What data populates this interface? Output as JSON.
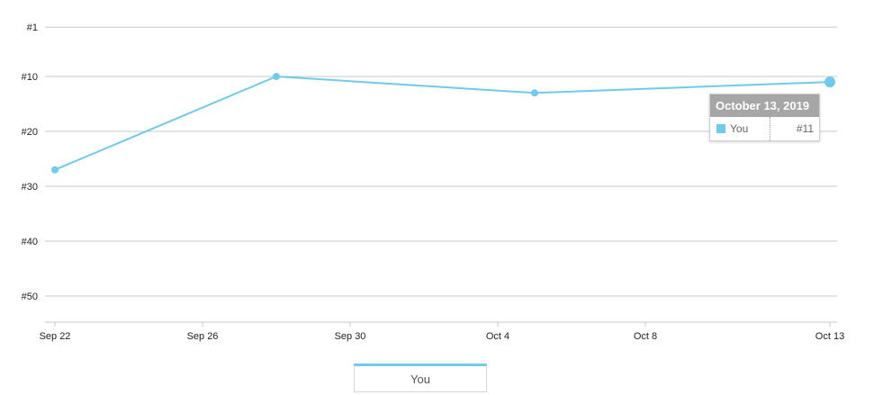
{
  "chart_data": {
    "type": "line",
    "x_ticks": [
      "Sep 22",
      "Sep 26",
      "Sep 30",
      "Oct 4",
      "Oct 8",
      "Oct 13"
    ],
    "y_ticks": [
      "#1",
      "#10",
      "#20",
      "#30",
      "#40",
      "#50"
    ],
    "y_reversed": true,
    "grid": true,
    "legend_placement": "bottom-center",
    "series": [
      {
        "name": "You",
        "color": "#6fcbeb",
        "points": [
          {
            "x": "Sep 22",
            "y": 27
          },
          {
            "x": "Sep 28",
            "y": 10
          },
          {
            "x": "Oct 5",
            "y": 13
          },
          {
            "x": "Oct 13",
            "y": 11
          }
        ]
      }
    ]
  },
  "tooltip": {
    "title": "October 13, 2019",
    "series": "You",
    "value": "#11",
    "color": "#6fcbeb"
  },
  "legend": {
    "label": "You",
    "color": "#6fcbeb"
  }
}
